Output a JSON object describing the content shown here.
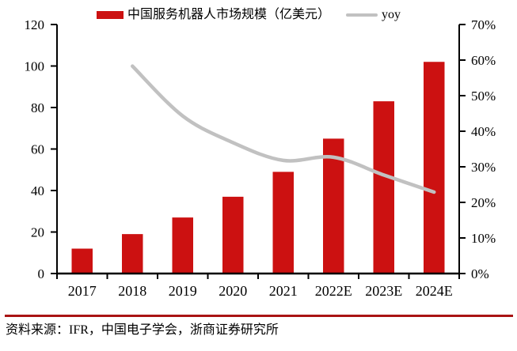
{
  "chart_data": {
    "type": "combo",
    "categories": [
      "2017",
      "2018",
      "2019",
      "2020",
      "2021",
      "2022E",
      "2023E",
      "2024E"
    ],
    "series": [
      {
        "name": "中国服务机器人市场规模（亿美元）",
        "type": "bar",
        "axis": "left",
        "color": "#CC1111",
        "values": [
          12,
          19,
          27,
          37,
          49,
          65,
          83,
          102
        ]
      },
      {
        "name": "yoy",
        "type": "line",
        "axis": "right",
        "color": "#C1C1C1",
        "values": [
          null,
          58.3,
          44.3,
          36.8,
          31.8,
          32.7,
          27.7,
          22.9
        ]
      }
    ],
    "y_left": {
      "min": 0,
      "max": 120,
      "step": 20,
      "tick_labels": [
        "0",
        "20",
        "40",
        "60",
        "80",
        "100",
        "120"
      ]
    },
    "y_right": {
      "min": 0,
      "max": 70,
      "step": 10,
      "format": "percent",
      "tick_labels": [
        "0%",
        "10%",
        "20%",
        "30%",
        "40%",
        "50%",
        "60%",
        "70%"
      ]
    },
    "grid": false,
    "legend_position": "top"
  },
  "source_note": "资料来源：IFR，中国电子学会，浙商证券研究所",
  "colors": {
    "bar": "#CC1111",
    "line": "#C1C1C1",
    "divider": "#A91414",
    "axis": "#000000"
  }
}
